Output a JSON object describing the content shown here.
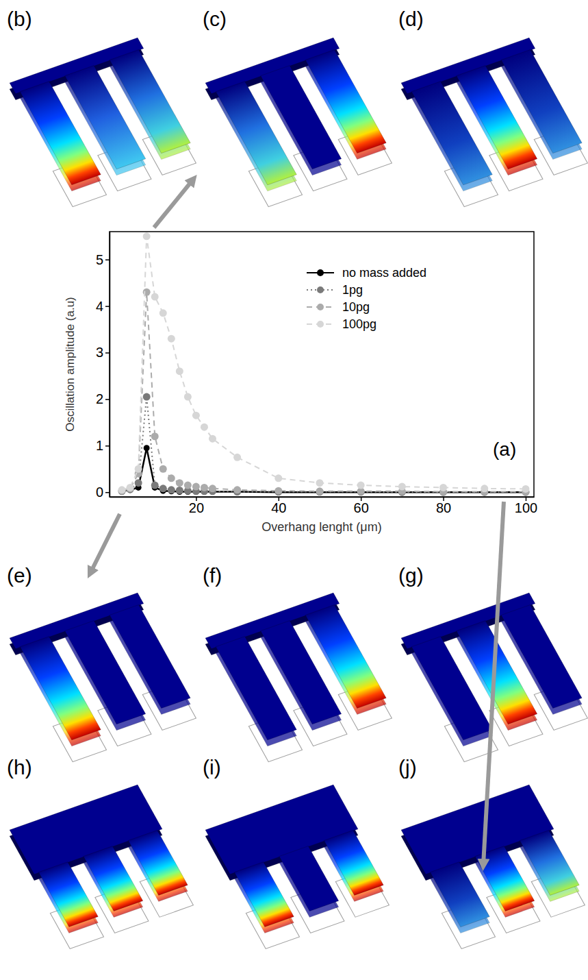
{
  "chart_data": {
    "type": "line",
    "xlabel": "Overhang lenght (μm)",
    "ylabel": "Oscillation amplitude (a.u)",
    "annotations": [
      "(a)"
    ],
    "x": [
      2,
      4,
      6,
      8,
      10,
      12,
      14,
      16,
      18,
      20,
      22,
      24,
      30,
      40,
      50,
      60,
      70,
      80,
      90,
      100
    ],
    "series": [
      {
        "name": "no mass added",
        "color": "#000000",
        "line_style": "solid",
        "marker": "circle",
        "values": [
          0.02,
          0.05,
          0.1,
          0.95,
          0.1,
          0.03,
          0.02,
          0.01,
          0.01,
          0.01,
          0.01,
          0.01,
          0.01,
          0,
          0,
          0,
          0,
          0,
          0,
          0
        ]
      },
      {
        "name": "1pg",
        "color": "#7a7a7a",
        "line_style": "dotted",
        "marker": "circle",
        "values": [
          0.02,
          0.06,
          0.2,
          2.05,
          0.15,
          0.08,
          0.05,
          0.04,
          0.03,
          0.02,
          0.02,
          0.02,
          0.01,
          0.01,
          0.01,
          0.01,
          0,
          0,
          0,
          0
        ]
      },
      {
        "name": "10pg",
        "color": "#ababab",
        "line_style": "dashed",
        "marker": "circle",
        "values": [
          0.03,
          0.08,
          0.4,
          4.3,
          1.2,
          0.5,
          0.3,
          0.2,
          0.15,
          0.12,
          0.1,
          0.08,
          0.05,
          0.03,
          0.02,
          0.02,
          0.02,
          0.01,
          0.01,
          0.01
        ]
      },
      {
        "name": "100pg",
        "color": "#d6d6d6",
        "line_style": "dashed",
        "marker": "circle",
        "values": [
          0.05,
          0.1,
          0.5,
          5.5,
          4.2,
          3.85,
          3.3,
          2.6,
          2.05,
          1.65,
          1.4,
          1.15,
          0.75,
          0.3,
          0.2,
          0.15,
          0.12,
          0.1,
          0.08,
          0.07
        ]
      }
    ],
    "xlim": [
      -1,
      102
    ],
    "xticks": [
      20,
      40,
      60,
      80,
      100
    ],
    "ylim": [
      -0.1,
      5.6
    ],
    "yticks": [
      0,
      1,
      2,
      3,
      4,
      5
    ],
    "legend": "upper right",
    "grid": false
  },
  "diagram_labels": [
    "(b)",
    "(c)",
    "(d)",
    "(e)",
    "(f)",
    "(g)",
    "(h)",
    "(i)",
    "(j)"
  ]
}
